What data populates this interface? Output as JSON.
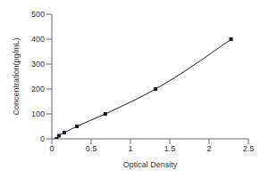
{
  "chart_data": {
    "type": "line",
    "x_label": "Optical Density",
    "y_label": "Concentration(pg/mL)",
    "x": [
      0.06,
      0.09,
      0.16,
      0.32,
      0.68,
      1.32,
      2.28
    ],
    "values": [
      0,
      12.5,
      25,
      50,
      100,
      200,
      400
    ],
    "color": "#1a1a2e",
    "marker": "square",
    "xlim": [
      0,
      2.5
    ],
    "xticks": [
      0,
      0.5,
      1,
      1.5,
      2,
      2.5
    ],
    "ylim": [
      0,
      500
    ],
    "yticks": [
      0,
      100,
      200,
      300,
      400,
      500
    ],
    "grid": false
  }
}
